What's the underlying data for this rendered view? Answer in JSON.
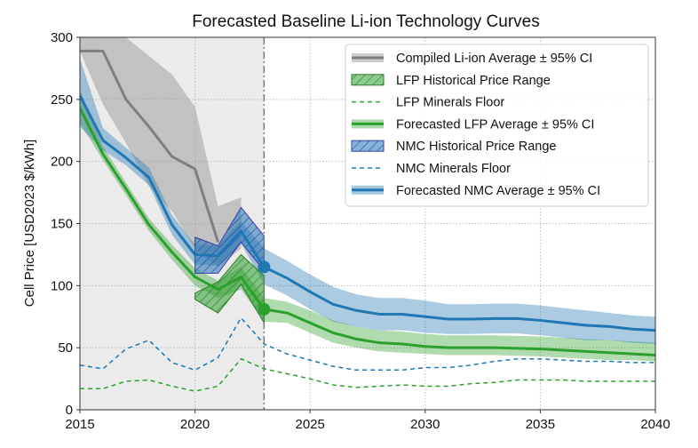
{
  "chart_data": {
    "type": "line",
    "title": "Forecasted Baseline Li-ion Technology Curves",
    "xlabel": "",
    "ylabel": "Cell Price [USD2023 $/kWh]",
    "xlim": [
      2015,
      2040
    ],
    "ylim": [
      0,
      300
    ],
    "xticks": [
      2015,
      2020,
      2025,
      2030,
      2035,
      2040
    ],
    "yticks": [
      0,
      50,
      100,
      150,
      200,
      250,
      300
    ],
    "grid": true,
    "legend_position": "top-right",
    "historical_shading": [
      2015,
      2023
    ],
    "forecast_start_marker": 2023,
    "colors": {
      "compiled": "#7f7f7f",
      "lfp": "#2ca02c",
      "nmc": "#1f77b4",
      "nmc_hatch": "#3b3bb0",
      "historical_bg": "#ebebeb"
    },
    "years": [
      2015,
      2016,
      2017,
      2018,
      2019,
      2020,
      2021,
      2022,
      2023,
      2024,
      2025,
      2026,
      2027,
      2028,
      2029,
      2030,
      2031,
      2032,
      2033,
      2034,
      2035,
      2036,
      2037,
      2038,
      2039,
      2040
    ],
    "series": [
      {
        "key": "compiled",
        "name": "Compiled Li-ion Average ± 95% CI",
        "kind": "mean_ci",
        "x": [
          2015,
          2016,
          2017,
          2018,
          2019,
          2020,
          2021
        ],
        "mean": [
          289,
          289,
          250,
          228,
          204,
          194,
          135
        ],
        "ci_x": [
          2015,
          2016,
          2017,
          2018,
          2019,
          2020,
          2021,
          2022
        ],
        "ci_upper": [
          310,
          310,
          300,
          285,
          270,
          244,
          164,
          171
        ],
        "ci_lower": [
          289,
          246,
          215,
          180,
          160,
          130,
          115,
          130
        ]
      },
      {
        "key": "lfp_hist",
        "name": "LFP Historical Price Range",
        "kind": "range",
        "x": [
          2020,
          2021,
          2022,
          2023
        ],
        "low": [
          89,
          78,
          101,
          70
        ],
        "high": [
          94,
          103,
          125,
          108
        ]
      },
      {
        "key": "lfp_floor",
        "name": "LFP Minerals Floor",
        "kind": "floor",
        "values": [
          17,
          17,
          23,
          24,
          19,
          15,
          19,
          41,
          33,
          29,
          25,
          20,
          18,
          19,
          20,
          19,
          19,
          21,
          22,
          24,
          24,
          24,
          23,
          23,
          23,
          23
        ]
      },
      {
        "key": "lfp",
        "name": "Forecasted LFP Average ± 95% CI",
        "kind": "mean_ci",
        "mean": [
          243,
          206,
          178,
          149,
          127,
          107,
          97,
          107,
          81,
          78,
          70,
          62,
          57,
          54,
          53,
          51,
          50,
          50,
          50,
          49.5,
          49,
          48,
          47,
          46,
          45,
          44
        ],
        "ci_upper": [
          258,
          212,
          183,
          154,
          133,
          114,
          104,
          115,
          90,
          87,
          80,
          72,
          67,
          64,
          63,
          61,
          60,
          60,
          60,
          59.5,
          59,
          58,
          57,
          56,
          55,
          54
        ],
        "ci_lower": [
          231,
          201,
          173,
          144,
          121,
          100,
          90,
          97,
          71,
          70,
          62,
          54,
          50,
          47,
          46,
          45,
          44,
          44,
          44,
          43.5,
          43,
          42,
          41,
          40,
          40,
          39
        ],
        "marker_year": 2023
      },
      {
        "key": "nmc_hist",
        "name": "NMC Historical Price Range",
        "kind": "range",
        "x": [
          2020,
          2021,
          2022,
          2023
        ],
        "low": [
          110,
          110,
          135,
          112
        ],
        "high": [
          139,
          132,
          163,
          140
        ]
      },
      {
        "key": "nmc_floor",
        "name": "NMC Minerals Floor",
        "kind": "floor",
        "values": [
          36,
          33,
          49,
          56,
          38,
          32,
          42,
          74,
          53,
          45,
          40,
          35,
          32,
          32,
          32,
          34,
          34,
          36,
          39,
          41,
          41,
          40,
          39,
          39,
          38,
          38
        ]
      },
      {
        "key": "nmc",
        "name": "Forecasted NMC Average ± 95% CI",
        "kind": "mean_ci",
        "mean": [
          253,
          217,
          203,
          187,
          149,
          125,
          124,
          144,
          115,
          106,
          95,
          85,
          80,
          77,
          77,
          75,
          73,
          73,
          73.5,
          73.5,
          72,
          70,
          68,
          67,
          65,
          64
        ],
        "ci_upper": [
          283,
          227,
          211,
          195,
          157,
          133,
          132,
          152,
          130,
          120,
          109,
          99,
          93,
          90,
          90,
          88,
          85,
          85,
          85.5,
          85.5,
          84,
          82,
          80,
          78,
          76,
          75
        ],
        "ci_lower": [
          228,
          209,
          197,
          181,
          141,
          117,
          116,
          134,
          101,
          92,
          81,
          71,
          67,
          64,
          64,
          62,
          61,
          61,
          61.5,
          61.5,
          60,
          58,
          56,
          56,
          54,
          53
        ],
        "marker_year": 2023
      }
    ]
  }
}
